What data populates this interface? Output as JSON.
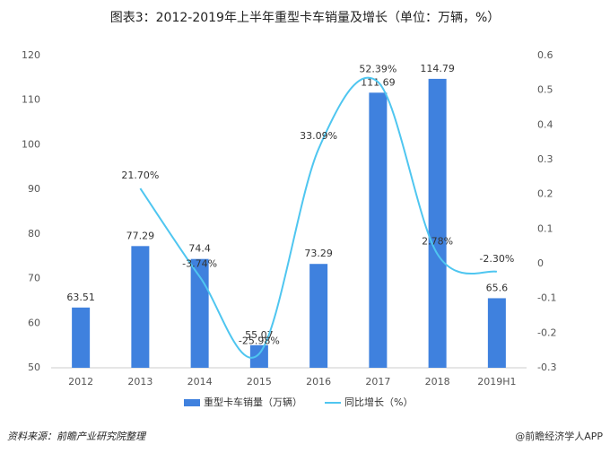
{
  "chart_data": {
    "type": "bar-line",
    "title": "图表3：2012-2019年上半年重型卡车销量及增长（单位：万辆，%）",
    "categories": [
      "2012",
      "2013",
      "2014",
      "2015",
      "2016",
      "2017",
      "2018",
      "2019H1"
    ],
    "series": [
      {
        "name": "重型卡车销量（万辆）",
        "color": "#3f81de",
        "values": [
          63.51,
          77.29,
          74.4,
          55.07,
          73.29,
          111.69,
          114.79,
          65.6
        ]
      },
      {
        "name": "同比增长（%）",
        "color": "#4fc6f0",
        "axis": "y2",
        "values": [
          null,
          0.217,
          -0.0374,
          -0.2598,
          0.3309,
          0.5239,
          0.0278,
          -0.023
        ],
        "value_labels": [
          null,
          "21.70%",
          "-3.74%",
          "-25.98%",
          "33.09%",
          "52.39%",
          "2.78%",
          "-2.30%"
        ]
      }
    ],
    "ylim": [
      50,
      120
    ],
    "yticks": [
      50,
      60,
      70,
      80,
      90,
      100,
      110,
      120
    ],
    "y2lim": [
      -0.3,
      0.6
    ],
    "y2ticks": [
      -0.3,
      -0.2,
      -0.1,
      0,
      0.1,
      0.2,
      0.3,
      0.4,
      0.5,
      0.6
    ],
    "source": "资料来源：前瞻产业研究院整理",
    "footer": "@前瞻经济学人APP"
  }
}
